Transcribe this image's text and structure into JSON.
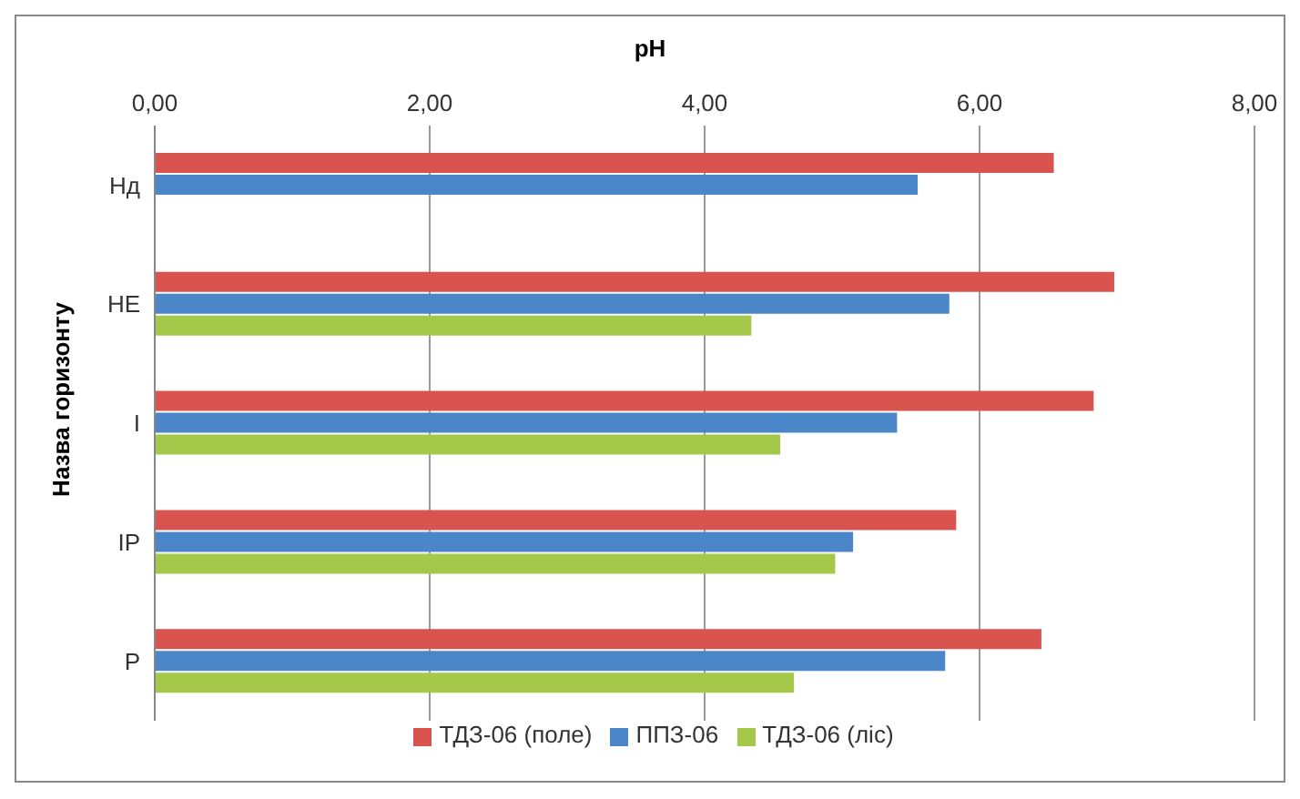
{
  "chart_data": {
    "type": "bar",
    "orientation": "horizontal",
    "title": "pH",
    "ylabel": "Назва горизонту",
    "categories": [
      "Нд",
      "НЕ",
      "I",
      "IP",
      "P"
    ],
    "series": [
      {
        "name": "ТДЗ-06 (поле)",
        "color": "#d9534f",
        "values": [
          6.54,
          6.98,
          6.83,
          5.83,
          6.45
        ]
      },
      {
        "name": "ППЗ-06",
        "color": "#4a86c8",
        "values": [
          5.55,
          5.78,
          5.4,
          5.08,
          5.75
        ]
      },
      {
        "name": "ТДЗ-06 (ліс)",
        "color": "#a4c94a",
        "values": [
          null,
          4.34,
          4.55,
          4.95,
          4.65
        ]
      }
    ],
    "xlim": [
      0,
      8
    ],
    "xticks": [
      {
        "value": 0,
        "label": "0,00"
      },
      {
        "value": 2,
        "label": "2,00"
      },
      {
        "value": 4,
        "label": "4,00"
      },
      {
        "value": 6,
        "label": "6,00"
      },
      {
        "value": 8,
        "label": "8,00"
      }
    ],
    "grid": "x",
    "legend": "bottom"
  }
}
